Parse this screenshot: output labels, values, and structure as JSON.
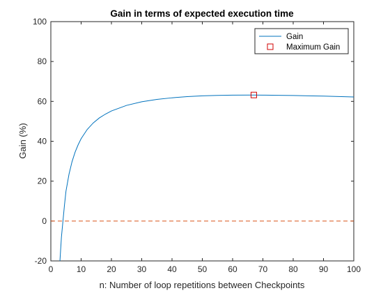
{
  "chart_data": {
    "type": "line",
    "title": "Gain in terms of expected execution time",
    "xlabel": "n: Number of loop repetitions between Checkpoints",
    "ylabel": "Gain (%)",
    "xlim": [
      0,
      100
    ],
    "ylim": [
      -20,
      100
    ],
    "xticks": [
      0,
      10,
      20,
      30,
      40,
      50,
      60,
      70,
      80,
      90,
      100
    ],
    "yticks": [
      -20,
      0,
      20,
      40,
      60,
      80,
      100
    ],
    "grid": false,
    "legend_position": "top-right",
    "series": [
      {
        "name": "Gain",
        "type": "line",
        "color": "#0072BD",
        "x": [
          3,
          3.5,
          4,
          4.5,
          5,
          6,
          7,
          8,
          9,
          10,
          12,
          14,
          16,
          18,
          20,
          25,
          30,
          35,
          40,
          45,
          50,
          55,
          60,
          67,
          70,
          75,
          80,
          85,
          90,
          95,
          100
        ],
        "y": [
          -20,
          -8,
          0,
          8,
          15,
          23.5,
          29.8,
          34.5,
          38.2,
          41.3,
          45.9,
          49.2,
          51.7,
          53.6,
          55.2,
          58.0,
          59.8,
          61.0,
          61.8,
          62.4,
          62.8,
          63.0,
          63.15,
          63.2,
          63.15,
          63.05,
          62.95,
          62.8,
          62.65,
          62.45,
          62.2
        ]
      },
      {
        "name": "Maximum Gain",
        "type": "marker",
        "color": "#D00000",
        "x": [
          67
        ],
        "y": [
          63.2
        ]
      },
      {
        "type": "reference-line",
        "color": "#D95319",
        "x": [
          0,
          100
        ],
        "y": [
          0,
          0
        ]
      }
    ]
  }
}
